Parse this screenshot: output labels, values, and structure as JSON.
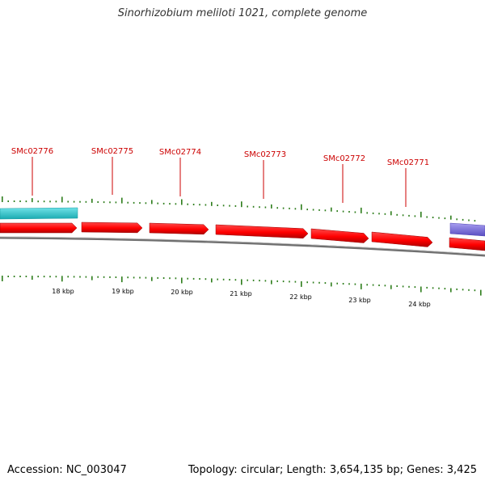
{
  "title": "Sinorhizobium meliloti 1021, complete genome",
  "accession": {
    "label": "Accession:",
    "value": "NC_003047"
  },
  "summary": {
    "topology_label": "Topology:",
    "topology": "circular;",
    "length_label": "Length:",
    "length": "3,654,135 bp;",
    "genes_label": "Genes:",
    "genes": "3,425"
  },
  "colors": {
    "forward_gene": "#ff0000",
    "forward_gene_dark": "#b80000",
    "feature_cyan": "#2ec8cf",
    "feature_purple": "#7b6fd6",
    "backbone": "#7a7a7a",
    "tick": "#2d7d1b",
    "gene_label": "#cc0000"
  },
  "gene_labels": [
    {
      "id": "g1",
      "name": "SMc02776"
    },
    {
      "id": "g2",
      "name": "SMc02775"
    },
    {
      "id": "g3",
      "name": "SMc02774"
    },
    {
      "id": "g4",
      "name": "SMc02773"
    },
    {
      "id": "g5",
      "name": "SMc02772"
    },
    {
      "id": "g6",
      "name": "SMc02771"
    }
  ],
  "scale_labels": [
    "18 kbp",
    "19 kbp",
    "20 kbp",
    "21 kbp",
    "22 kbp",
    "23 kbp",
    "24 kbp"
  ]
}
